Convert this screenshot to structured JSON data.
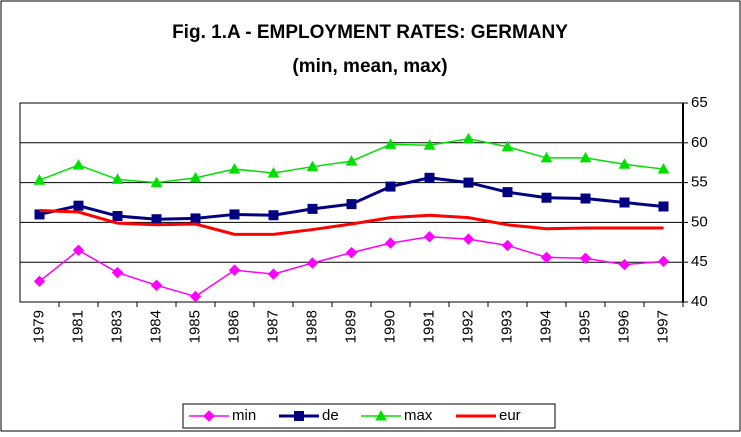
{
  "chart_data": {
    "type": "line",
    "title": [
      "Fig. 1.A - EMPLOYMENT RATES: GERMANY",
      "(min, mean, max)"
    ],
    "categories": [
      "1979",
      "1981",
      "1983",
      "1984",
      "1985",
      "1986",
      "1987",
      "1988",
      "1989",
      "1990",
      "1991",
      "1992",
      "1993",
      "1994",
      "1995",
      "1996",
      "1997"
    ],
    "series": [
      {
        "name": "min",
        "color": "#ff00ff",
        "marker": "diamond",
        "values": [
          42.6,
          46.5,
          43.7,
          42.1,
          40.7,
          44.0,
          43.5,
          44.9,
          46.2,
          47.4,
          48.2,
          47.9,
          47.1,
          45.6,
          45.5,
          44.7,
          45.1
        ]
      },
      {
        "name": "de",
        "color": "#000080",
        "marker": "square",
        "values": [
          51.0,
          52.1,
          50.8,
          50.4,
          50.5,
          51.0,
          50.9,
          51.7,
          52.3,
          54.5,
          55.6,
          55.0,
          53.8,
          53.1,
          53.0,
          52.5,
          52.0
        ]
      },
      {
        "name": "max",
        "color": "#00e000",
        "marker": "triangle",
        "values": [
          55.3,
          57.2,
          55.4,
          55.0,
          55.6,
          56.7,
          56.2,
          57.0,
          57.7,
          59.8,
          59.7,
          60.5,
          59.5,
          58.1,
          58.1,
          57.3,
          56.7
        ]
      },
      {
        "name": "eur",
        "color": "#ff0000",
        "marker": "none",
        "values": [
          51.5,
          51.3,
          49.9,
          49.7,
          49.8,
          48.5,
          48.5,
          49.1,
          49.8,
          50.6,
          50.9,
          50.6,
          49.7,
          49.2,
          49.3,
          49.3,
          49.3
        ]
      }
    ],
    "ylim": [
      40,
      65
    ],
    "yticks": [
      40,
      45,
      50,
      55,
      60,
      65
    ],
    "grid": true,
    "y_axis_side": "right",
    "legend": "bottom"
  }
}
